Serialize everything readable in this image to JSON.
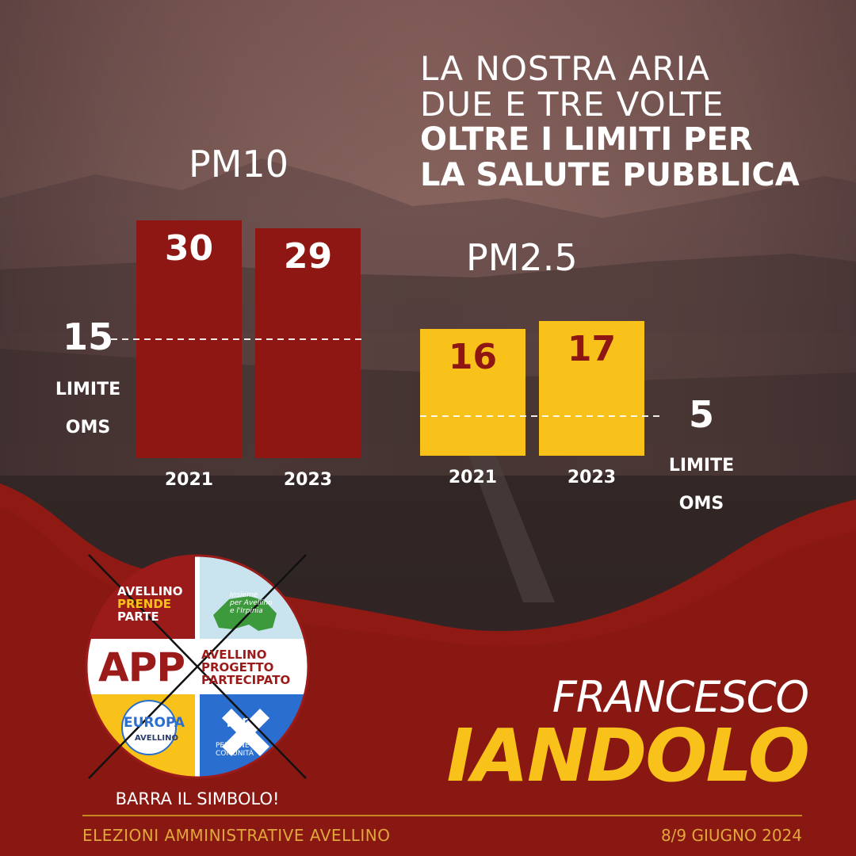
{
  "headline": {
    "line1": "LA NOSTRA ARIA",
    "line2": "DUE E TRE VOLTE",
    "line3": "OLTRE I LIMITI PER",
    "line4": "LA SALUTE PUBBLICA"
  },
  "colors": {
    "pm10_bar": "#8e1713",
    "pm25_bar": "#f8c21a",
    "pm10_label": "#ffffff",
    "pm25_label": "#8e1713",
    "accent_yellow": "#f8c21a",
    "band_red": "#8f1a14"
  },
  "chart_data": [
    {
      "type": "bar",
      "title": "PM10",
      "categories": [
        "2021",
        "2023"
      ],
      "values": [
        30,
        29
      ],
      "reference_line": {
        "value": 15,
        "label_line1": "LIMITE",
        "label_line2": "OMS"
      },
      "bar_color": "#8e1713",
      "value_label_color": "#ffffff",
      "ylim": [
        0,
        30
      ]
    },
    {
      "type": "bar",
      "title": "PM2.5",
      "categories": [
        "2021",
        "2023"
      ],
      "values": [
        16,
        17
      ],
      "reference_line": {
        "value": 5,
        "label_line1": "LIMITE",
        "label_line2": "OMS"
      },
      "bar_color": "#f8c21a",
      "value_label_color": "#8e1713",
      "ylim": [
        0,
        17
      ]
    }
  ],
  "candidate": {
    "first_name": "FRANCESCO",
    "last_name": "IANDOLO"
  },
  "logo": {
    "q1_line1": "AVELLINO",
    "q1_line2": "PRENDE",
    "q1_line3": "PARTE",
    "q2_text": "Insieme\nper Avellino\ne l'Irpinia",
    "app_big": "APP",
    "app_small": "AVELLINO\nPROGETTO\nPARTECIPATO",
    "q3_text": "EUROPA",
    "q3_sub": "AVELLINO",
    "q4_per": "per",
    "q4_text": "PERSONE\nCOMUNITÀ"
  },
  "barra": "BARRA IL SIMBOLO!",
  "footer": {
    "left": "ELEZIONI AMMINISTRATIVE AVELLINO",
    "right": "8/9 GIUGNO 2024"
  }
}
